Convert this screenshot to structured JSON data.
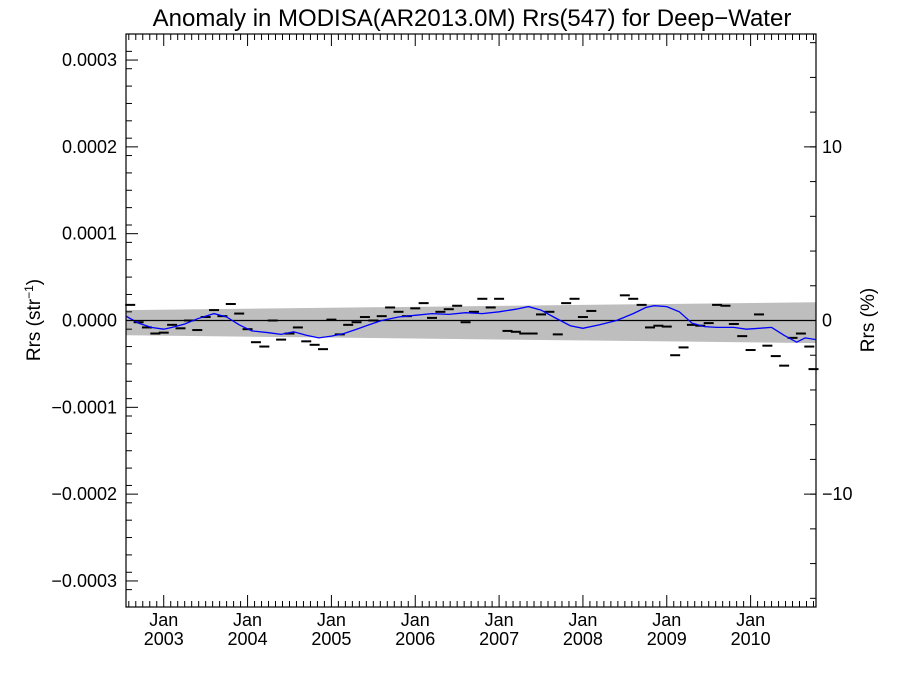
{
  "chart_data": {
    "type": "line",
    "title": "Anomaly in MODISA(AR2013.0M) Rrs(547) for Deep−Water",
    "ylabel_left_main": "Rrs (str",
    "ylabel_left_sup": "−1",
    "ylabel_left_close": ")",
    "ylabel_right": "Rrs (%)",
    "xlim": [
      2002.55,
      2010.78
    ],
    "ylim": [
      -0.00033,
      0.00033
    ],
    "y2lim": [
      -16.5,
      16.5
    ],
    "y_ticks": [
      -0.0003,
      -0.0002,
      -0.0001,
      0.0,
      0.0001,
      0.0002,
      0.0003
    ],
    "y_tick_labels": [
      "−0.0003",
      "−0.0002",
      "−0.0001",
      "0.0000",
      "0.0001",
      "0.0002",
      "0.0003"
    ],
    "y2_ticks": [
      -10,
      0,
      10
    ],
    "y2_tick_labels": [
      "−10",
      "0",
      "10"
    ],
    "x_ticks": [
      2003.0,
      2004.0,
      2005.0,
      2006.0,
      2007.0,
      2008.0,
      2009.0,
      2010.0
    ],
    "x_tick_labels_month": [
      "Jan",
      "Jan",
      "Jan",
      "Jan",
      "Jan",
      "Jan",
      "Jan",
      "Jan"
    ],
    "x_tick_labels_year": [
      "2003",
      "2004",
      "2005",
      "2006",
      "2007",
      "2008",
      "2009",
      "2010"
    ],
    "zero_line": 0,
    "uncertainty_band": {
      "x": [
        2002.55,
        2010.78
      ],
      "upper": [
        1.2e-05,
        2.1e-05
      ],
      "lower": [
        -1.7e-05,
        -2.6e-05
      ]
    },
    "colors": {
      "smooth": "#0000ff",
      "band": "#bebebe",
      "points": "#000000"
    },
    "series": [
      {
        "marker": "dash",
        "x": [
          2002.6,
          2002.7,
          2002.8,
          2002.9,
          2003.0,
          2003.1,
          2003.2,
          2003.3,
          2003.4,
          2003.5,
          2003.6,
          2003.7,
          2003.8,
          2003.9,
          2004.0,
          2004.1,
          2004.2,
          2004.3,
          2004.4,
          2004.5,
          2004.6,
          2004.7,
          2004.8,
          2004.9,
          2005.0,
          2005.1,
          2005.2,
          2005.3,
          2005.4,
          2005.5,
          2005.6,
          2005.7,
          2005.8,
          2005.9,
          2006.0,
          2006.1,
          2006.2,
          2006.3,
          2006.4,
          2006.5,
          2006.6,
          2006.7,
          2006.8,
          2006.9,
          2007.0,
          2007.1,
          2007.2,
          2007.3,
          2007.4,
          2007.5,
          2007.6,
          2007.7,
          2007.8,
          2007.9,
          2008.0,
          2008.1,
          2008.5,
          2008.6,
          2008.7,
          2008.8,
          2008.9,
          2009.0,
          2009.1,
          2009.2,
          2009.3,
          2009.4,
          2009.5,
          2009.6,
          2009.7,
          2009.8,
          2009.9,
          2010.0,
          2010.1,
          2010.2,
          2010.3,
          2010.4,
          2010.5,
          2010.6,
          2010.7,
          2010.75
        ],
        "y": [
          1.8e-05,
          -2e-06,
          -8e-06,
          -1.5e-05,
          -1.4e-05,
          -5e-06,
          -9e-06,
          0.0,
          -1.1e-05,
          4e-06,
          1.2e-05,
          5e-06,
          1.9e-05,
          8e-06,
          -1e-05,
          -2.5e-05,
          -3e-05,
          0.0,
          -2.2e-05,
          -1.5e-05,
          -8e-06,
          -2.4e-05,
          -2.8e-05,
          -3.3e-05,
          1e-06,
          -1.6e-05,
          -5e-06,
          -2e-06,
          4e-06,
          0.0,
          5e-06,
          1.5e-05,
          1e-05,
          5e-06,
          1.4e-05,
          2e-05,
          3e-06,
          1e-05,
          1.3e-05,
          1.7e-05,
          -2e-06,
          1e-05,
          2.5e-05,
          1.5e-05,
          2.5e-05,
          -1.2e-05,
          -1.3e-05,
          -1.5e-05,
          -1.5e-05,
          7e-06,
          1e-05,
          -1.6e-05,
          2e-05,
          2.5e-05,
          4e-06,
          1.1e-05,
          2.9e-05,
          2.5e-05,
          1.8e-05,
          -8e-06,
          -6e-06,
          -7e-06,
          -4e-05,
          -3.1e-05,
          -5e-06,
          -6e-06,
          -3e-06,
          1.8e-05,
          1.7e-05,
          -4e-06,
          -1.8e-05,
          -3.4e-05,
          7e-06,
          -2.9e-05,
          -4.1e-05,
          -5.2e-05,
          -2e-05,
          -1.5e-05,
          -3e-05,
          -5.6e-05
        ]
      },
      {
        "marker": "line",
        "x": [
          2002.55,
          2002.7,
          2002.85,
          2003.0,
          2003.1,
          2003.25,
          2003.4,
          2003.6,
          2003.75,
          2003.9,
          2004.05,
          2004.25,
          2004.4,
          2004.55,
          2004.7,
          2004.85,
          2005.0,
          2005.15,
          2005.3,
          2005.45,
          2005.6,
          2005.8,
          2006.0,
          2006.2,
          2006.4,
          2006.6,
          2006.8,
          2007.0,
          2007.2,
          2007.35,
          2007.5,
          2007.65,
          2007.85,
          2008.0,
          2008.2,
          2008.4,
          2008.6,
          2008.75,
          2008.85,
          2009.0,
          2009.15,
          2009.3,
          2009.45,
          2009.6,
          2009.8,
          2009.95,
          2010.1,
          2010.25,
          2010.4,
          2010.55,
          2010.65,
          2010.78
        ],
        "y": [
          5e-06,
          -3e-06,
          -8e-06,
          -1e-05,
          -8e-06,
          -4e-06,
          2e-06,
          8e-06,
          4e-06,
          -5e-06,
          -1.2e-05,
          -1.4e-05,
          -1.6e-05,
          -1.3e-05,
          -1.7e-05,
          -2e-05,
          -1.8e-05,
          -1.5e-05,
          -1e-05,
          -5e-06,
          0.0,
          4e-06,
          6e-06,
          8e-06,
          7e-06,
          9e-06,
          8e-06,
          1e-05,
          1.3e-05,
          1.6e-05,
          1.2e-05,
          4e-06,
          -6e-06,
          -9e-06,
          -5e-06,
          0.0,
          8e-06,
          1.5e-05,
          1.7e-05,
          1.6e-05,
          1e-05,
          -3e-06,
          -7e-06,
          -8e-06,
          -8e-06,
          -1e-05,
          -9e-06,
          -8e-06,
          -1.7e-05,
          -2.5e-05,
          -2e-05,
          -2.2e-05
        ]
      }
    ]
  }
}
